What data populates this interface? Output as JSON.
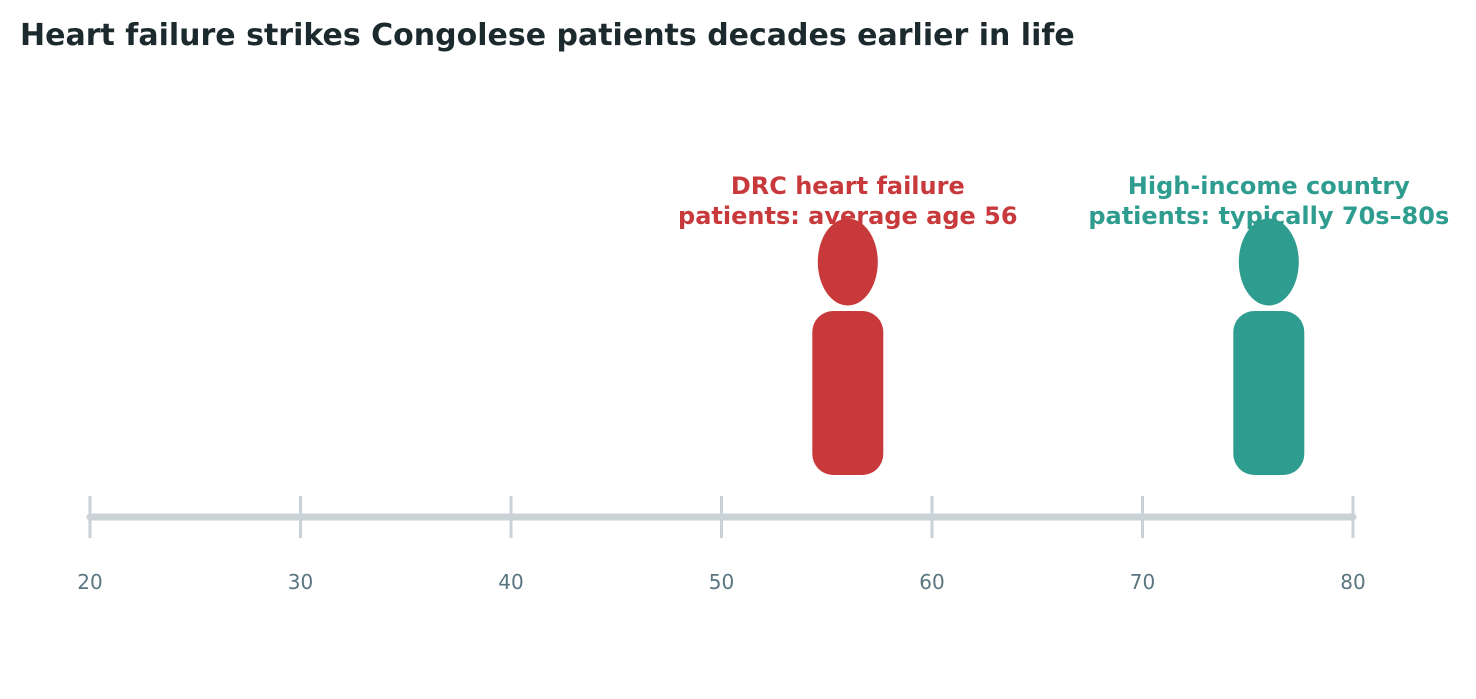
{
  "chart_data": {
    "type": "timeline",
    "title": "Heart failure strikes Congolese patients decades earlier in life",
    "xlim": [
      20,
      80
    ],
    "ticks": [
      20,
      30,
      40,
      50,
      60,
      70,
      80
    ],
    "tick_labels": [
      "20",
      "30",
      "40",
      "50",
      "60",
      "70",
      "80"
    ],
    "markers": [
      {
        "label_line1": "DRC heart failure",
        "label_line2": "patients: average age 56",
        "value": 56,
        "color": "#c8393b"
      },
      {
        "label_line1": "High-income country",
        "label_line2": "patients: typically 70s–80s",
        "value": 76,
        "color": "#2e9d8f"
      }
    ],
    "colors": {
      "title": "#1c2a2e",
      "axis": "#c9d2d5",
      "tick_text": "#5a7680"
    }
  }
}
